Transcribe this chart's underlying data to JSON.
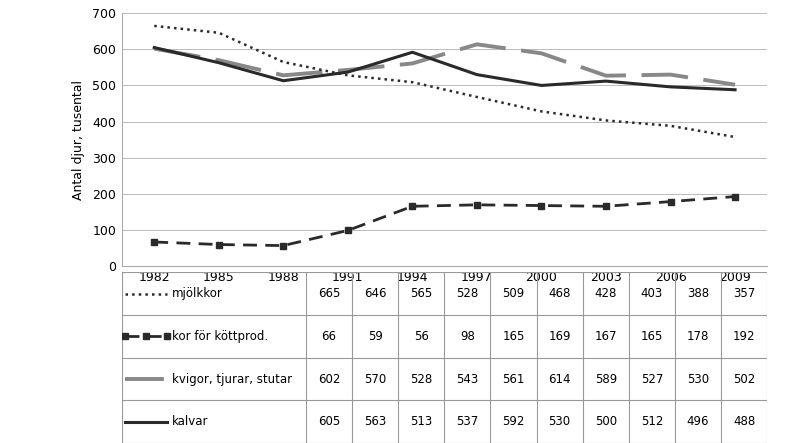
{
  "years": [
    1982,
    1985,
    1988,
    1991,
    1994,
    1997,
    2000,
    2003,
    2006,
    2009
  ],
  "mjolkkor": [
    665,
    646,
    565,
    528,
    509,
    468,
    428,
    403,
    388,
    357
  ],
  "kor_kott": [
    66,
    59,
    56,
    98,
    165,
    169,
    167,
    165,
    178,
    192
  ],
  "kvigor": [
    602,
    570,
    528,
    543,
    561,
    614,
    589,
    527,
    530,
    502
  ],
  "kalvar": [
    605,
    563,
    513,
    537,
    592,
    530,
    500,
    512,
    496,
    488
  ],
  "ylabel": "Antal djur, tusental",
  "ylim": [
    0,
    700
  ],
  "yticks": [
    0,
    100,
    200,
    300,
    400,
    500,
    600,
    700
  ],
  "table_rows": [
    [
      "........ mjölkkor",
      665,
      646,
      565,
      528,
      509,
      468,
      428,
      403,
      388,
      357
    ],
    [
      "■■■■ kor för köttprod.",
      66,
      59,
      56,
      98,
      165,
      169,
      167,
      165,
      178,
      192
    ],
    [
      "— – kvigor, tjurar, stutar",
      602,
      570,
      528,
      543,
      561,
      614,
      589,
      527,
      530,
      502
    ],
    [
      "—— kalvar",
      605,
      563,
      513,
      537,
      592,
      530,
      500,
      512,
      496,
      488
    ]
  ],
  "table_labels": [
    "mjölkkor",
    "kor för köttprod.",
    "kvigor, tjurar, stutar",
    "kalvar"
  ],
  "bg_color": "#ffffff",
  "grid_color": "#bbbbbb",
  "line_color": "#2a2a2a",
  "gray_color": "#888888"
}
